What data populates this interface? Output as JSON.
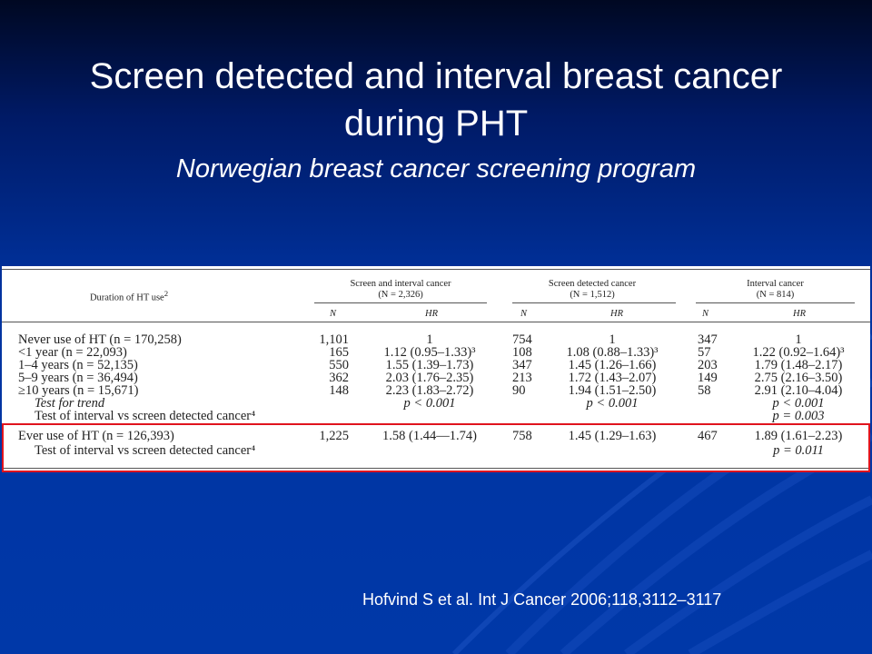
{
  "slide": {
    "title": "Screen detected and interval breast cancer during PHT",
    "subtitle": "Norwegian breast cancer screening program",
    "citation": "Hofvind S et al. Int J Cancer 2006;118,3112–3117"
  },
  "table": {
    "stub_header": "Duration of HT use",
    "stub_header_sup": "2",
    "groups": [
      {
        "title": "Screen and interval cancer",
        "total": "(N = 2,326)"
      },
      {
        "title": "Screen detected cancer",
        "total": "(N = 1,512)"
      },
      {
        "title": "Interval cancer",
        "total": "(N = 814)"
      }
    ],
    "sub_n": "N",
    "sub_hr": "HR",
    "rows": [
      {
        "label": "Never use of HT (n = 170,258)",
        "indent": false,
        "italic": false,
        "cells": [
          "1,101",
          "1",
          "754",
          "1",
          "347",
          "1"
        ]
      },
      {
        "label": "<1 year (n = 22,093)",
        "indent": false,
        "italic": false,
        "cells": [
          "165",
          "1.12 (0.95–1.33)³",
          "108",
          "1.08 (0.88–1.33)³",
          "57",
          "1.22 (0.92–1.64)³"
        ]
      },
      {
        "label": "1–4 years (n = 52,135)",
        "indent": false,
        "italic": false,
        "cells": [
          "550",
          "1.55 (1.39–1.73)",
          "347",
          "1.45 (1.26–1.66)",
          "203",
          "1.79 (1.48–2.17)"
        ]
      },
      {
        "label": "5–9 years (n = 36,494)",
        "indent": false,
        "italic": false,
        "cells": [
          "362",
          "2.03 (1.76–2.35)",
          "213",
          "1.72 (1.43–2.07)",
          "149",
          "2.75 (2.16–3.50)"
        ]
      },
      {
        "label": "≥10 years (n = 15,671)",
        "indent": false,
        "italic": false,
        "cells": [
          "148",
          "2.23 (1.83–2.72)",
          "90",
          "1.94 (1.51–2.50)",
          "58",
          "2.91 (2.10–4.04)"
        ]
      },
      {
        "label": "Test for trend",
        "indent": true,
        "italic": true,
        "cells": [
          "",
          "p < 0.001",
          "",
          "p < 0.001",
          "",
          "p < 0.001"
        ]
      },
      {
        "label": "Test of interval vs screen detected cancer⁴",
        "indent": true,
        "italic": false,
        "cells": [
          "",
          "",
          "",
          "",
          "",
          "p = 0.003"
        ]
      },
      {
        "label": "Ever use of HT (n = 126,393)",
        "indent": false,
        "italic": false,
        "cells": [
          "1,225",
          "1.58 (1.44—1.74)",
          "758",
          "1.45 (1.29–1.63)",
          "467",
          "1.89 (1.61–2.23)"
        ]
      },
      {
        "label": "Test of interval vs screen detected cancer⁴",
        "indent": true,
        "italic": false,
        "cells": [
          "",
          "",
          "",
          "",
          "",
          "p = 0.011"
        ]
      }
    ]
  }
}
